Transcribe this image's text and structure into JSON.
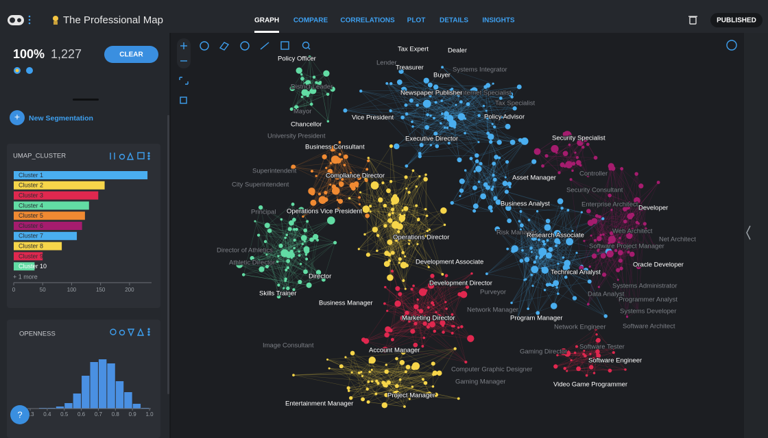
{
  "header": {
    "title": "The Professional Map",
    "tabs": [
      "GRAPH",
      "COMPARE",
      "CORRELATIONS",
      "PLOT",
      "DETAILS",
      "INSIGHTS"
    ],
    "status": "PUBLISHED"
  },
  "sidebar": {
    "percent": "100%",
    "count": "1,227",
    "clear": "CLEAR",
    "new_segmentation": "New Segmentation",
    "help": "?"
  },
  "chart_data": [
    {
      "type": "bar",
      "orientation": "horizontal",
      "title": "UMAP_CLUSTER",
      "categories": [
        "Cluster 1",
        "Cluster 2",
        "Cluster 3",
        "Cluster 4",
        "Cluster 5",
        "Cluster 6",
        "Cluster 7",
        "Cluster 8",
        "Cluster 9",
        "Cluster 10"
      ],
      "values": [
        231,
        157,
        146,
        130,
        123,
        118,
        109,
        83,
        50,
        36
      ],
      "colors": [
        "#4aaeef",
        "#f6d54a",
        "#e0284f",
        "#62dca4",
        "#f08a32",
        "#a51c6e",
        "#4aaeef",
        "#f6d54a",
        "#e0284f",
        "#62dca4"
      ],
      "more": "+ 1 more",
      "xlim": [
        0,
        238
      ],
      "xticks": [
        0,
        50,
        100,
        150,
        200
      ]
    },
    {
      "type": "histogram",
      "title": "OPENNESS",
      "bins": [
        0.3,
        0.35,
        0.4,
        0.45,
        0.5,
        0.55,
        0.6,
        0.65,
        0.7,
        0.75,
        0.8,
        0.85,
        0.9,
        0.95,
        1
      ],
      "values": [
        0,
        1,
        1,
        3,
        8,
        22,
        48,
        68,
        72,
        66,
        40,
        24,
        7,
        1
      ],
      "color": "#4a90e2",
      "xlim": [
        0.3,
        1
      ],
      "xticks": [
        0.3,
        0.4,
        0.5,
        0.6,
        0.7,
        0.8,
        0.9,
        {
          "value": 1,
          "label": "1.0"
        }
      ]
    }
  ],
  "graph": {
    "labels": [
      "Tax Expert",
      "Dealer",
      "Policy Officer",
      "Treasurer",
      "Buyer",
      "Newspaper Publisher",
      "Vice President",
      "Policy Advisor",
      "Chancellor",
      "Executive Director",
      "Security Specialist",
      "Business Consultant",
      "Compliance Director",
      "Asset Manager",
      "Business Analyst",
      "Developer",
      "Operations Vice President",
      "Research Associate",
      "Operations Director",
      "Oracle Developer",
      "Development Associate",
      "Technical Analyst",
      "Director",
      "Development Director",
      "Skills Trainer",
      "Business Manager",
      "Marketing Director",
      "Program Manager",
      "Account Manager",
      "Software Engineer",
      "Video Game Programmer",
      "Project Manager",
      "Entertainment Manager"
    ],
    "dim_labels": [
      "Lender",
      "Systems Integrator",
      "Internet Specialist",
      "District Leader",
      "Tax Specialist",
      "Mayor",
      "University President",
      "Superintendent",
      "City Superintendent",
      "Principal",
      "Controller",
      "Security Consultant",
      "Enterprise Architect",
      "Web Architect",
      "Software Project Manager",
      "Net Architect",
      "Director of Athletics",
      "Athletic Director",
      "Systems Administrator",
      "Programmer Analyst",
      "Systems Developer",
      "Software Architect",
      "Data Analyst",
      "Gaming Director",
      "Software Tester",
      "Network Engineer",
      "Image Consultant",
      "Computer Graphic Designer",
      "Gaming Manager",
      "Network Manager",
      "Purveyor",
      "Risk Manager"
    ]
  }
}
